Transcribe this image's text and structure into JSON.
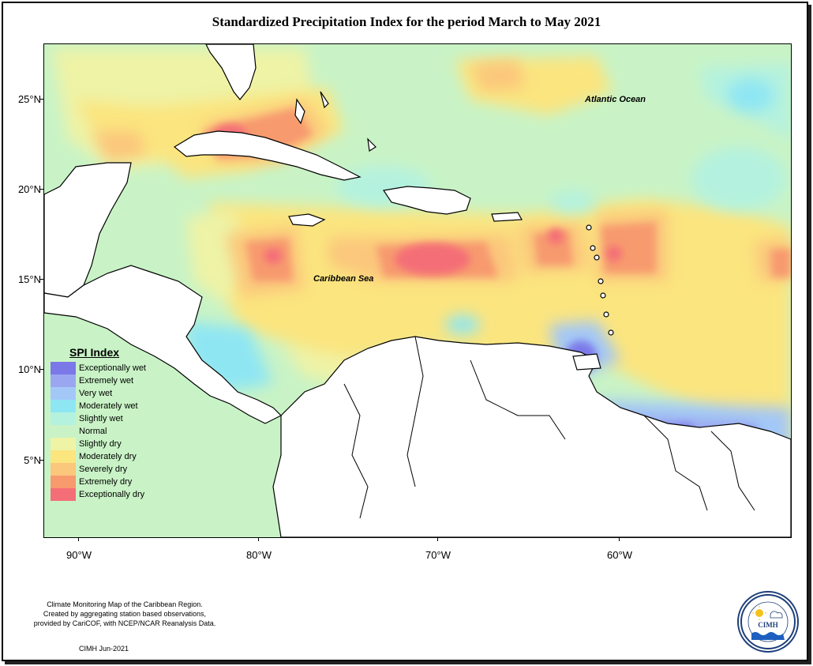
{
  "title": "Standardized Precipitation Index for the period March to May 2021",
  "map": {
    "labels": {
      "atlantic": "Atlantic Ocean",
      "caribbean": "Caribbean Sea"
    },
    "y_ticks": [
      "25°N",
      "20°N",
      "15°N",
      "10°N",
      "5°N"
    ],
    "x_ticks": [
      "90°W",
      "80°W",
      "70°W",
      "60°W"
    ]
  },
  "legend": {
    "title": "SPI Index",
    "items": [
      {
        "label": "Exceptionally wet",
        "color": "#7b78e8"
      },
      {
        "label": "Extremely wet",
        "color": "#9ba6f0"
      },
      {
        "label": "Very wet",
        "color": "#a3c8f7"
      },
      {
        "label": "Moderately wet",
        "color": "#8fe6f3"
      },
      {
        "label": "Slightly wet",
        "color": "#b4f2df"
      },
      {
        "label": "Normal",
        "color": "#c9f3c6"
      },
      {
        "label": "Slightly dry",
        "color": "#eef3a6"
      },
      {
        "label": "Moderately dry",
        "color": "#fbe57f"
      },
      {
        "label": "Severely dry",
        "color": "#fbc77c"
      },
      {
        "label": "Extremely dry",
        "color": "#f79a6e"
      },
      {
        "label": "Exceptionally dry",
        "color": "#f46e77"
      }
    ]
  },
  "footer": {
    "line1": "Climate Monitoring Map of the Caribbean Region.",
    "line2": "Created by aggregating station based observations,",
    "line3": "provided by CariCOF, with NCEP/NCAR Reanalysis Data.",
    "credit": "CIMH Jun-2021"
  },
  "logo": {
    "text": "CIMH",
    "ring_text": "Caribbean Institute for Meteorology and Hydrology"
  }
}
